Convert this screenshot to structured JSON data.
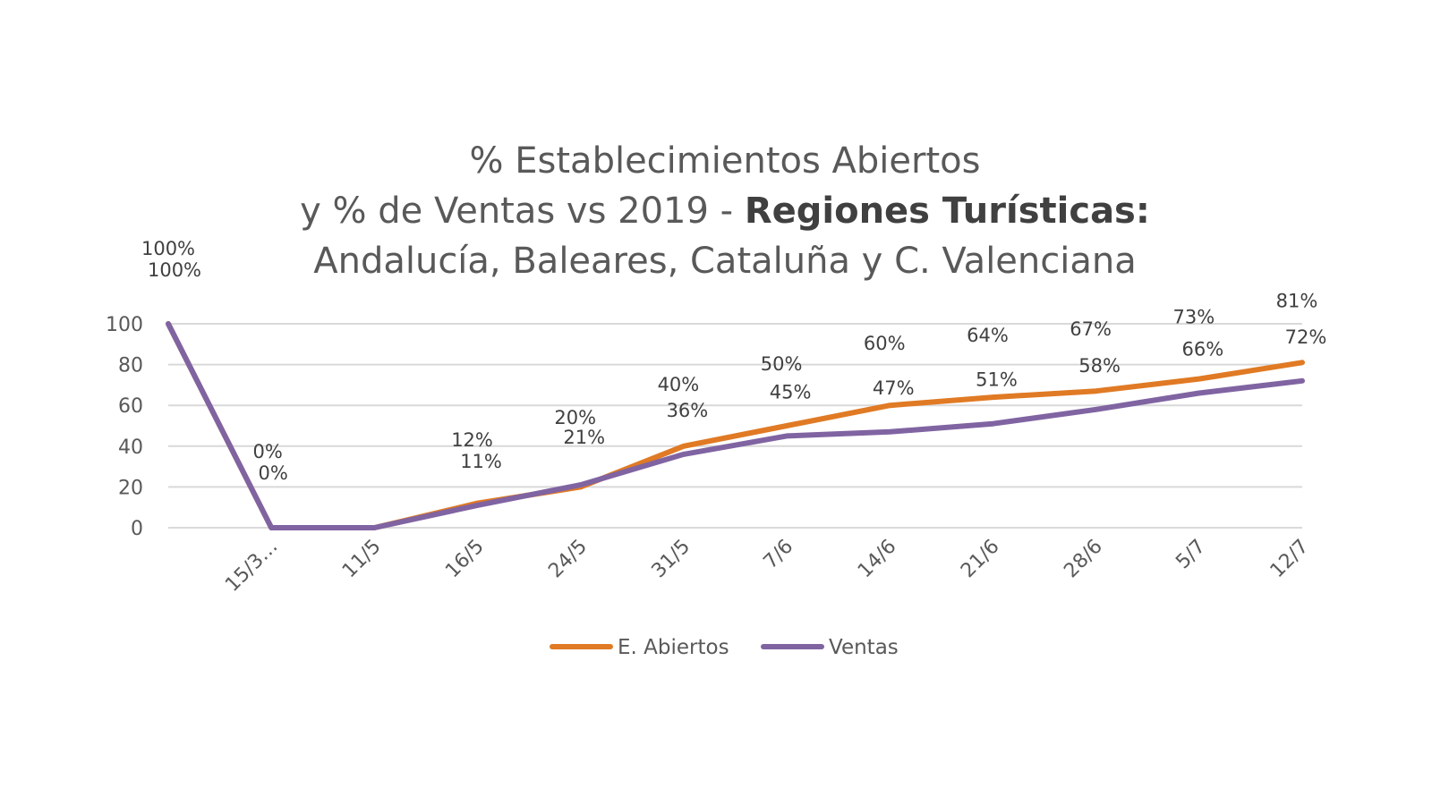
{
  "chart_data": {
    "type": "line",
    "title": {
      "line1": "% Establecimientos Abiertos",
      "line2_prefix": "y % de Ventas vs 2019 - ",
      "line2_bold": "Regiones Turísticas:",
      "line3": "Andalucía, Baleares, Cataluña y C. Valenciana"
    },
    "categories": [
      "",
      "15/3…",
      "11/5",
      "16/5",
      "24/5",
      "31/5",
      "7/6",
      "14/6",
      "21/6",
      "28/6",
      "5/7",
      "12/7"
    ],
    "series": [
      {
        "name": "E. Abiertos",
        "color": "#E07A24",
        "values": [
          100,
          0,
          0,
          12,
          20,
          40,
          50,
          60,
          64,
          67,
          73,
          81
        ],
        "labels": [
          "100%",
          "0%",
          "",
          "12%",
          "20%",
          "40%",
          "50%",
          "60%",
          "64%",
          "67%",
          "73%",
          "81%"
        ]
      },
      {
        "name": "Ventas",
        "color": "#8064A2",
        "values": [
          100,
          0,
          0,
          11,
          21,
          36,
          45,
          47,
          51,
          58,
          66,
          72
        ],
        "labels": [
          "100%",
          "0%",
          "",
          "11%",
          "21%",
          "36%",
          "45%",
          "47%",
          "51%",
          "58%",
          "66%",
          "72%"
        ]
      }
    ],
    "yticks": [
      "0",
      "20",
      "40",
      "60",
      "80",
      "100"
    ],
    "ylim": [
      0,
      100
    ],
    "grid": true,
    "legend_position": "bottom"
  }
}
